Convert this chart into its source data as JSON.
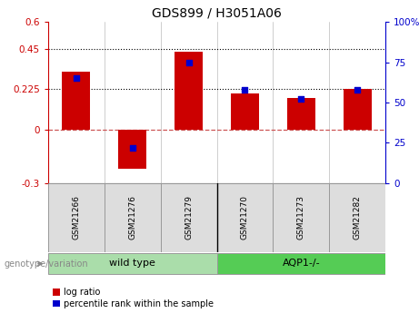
{
  "title": "GDS899 / H3051A06",
  "samples": [
    "GSM21266",
    "GSM21276",
    "GSM21279",
    "GSM21270",
    "GSM21273",
    "GSM21282"
  ],
  "log_ratio": [
    0.32,
    -0.22,
    0.435,
    0.2,
    0.175,
    0.225
  ],
  "percentile": [
    65,
    22,
    75,
    58,
    52,
    58
  ],
  "ylim_left": [
    -0.3,
    0.6
  ],
  "ylim_right": [
    0,
    100
  ],
  "yticks_left": [
    -0.3,
    0.0,
    0.225,
    0.45,
    0.6
  ],
  "yticks_right": [
    0,
    25,
    50,
    75,
    100
  ],
  "ytick_labels_left": [
    "-0.3",
    "0",
    "0.225",
    "0.45",
    "0.6"
  ],
  "ytick_labels_right": [
    "0",
    "25",
    "50",
    "75",
    "100%"
  ],
  "hlines": [
    0.225,
    0.45
  ],
  "bar_color": "#cc0000",
  "square_color": "#0000cc",
  "zero_line_color": "#cc5555",
  "hline_color": "#000000",
  "groups": [
    {
      "label": "wild type",
      "indices": [
        0,
        1,
        2
      ],
      "color": "#aaddaa"
    },
    {
      "label": "AQP1-/-",
      "indices": [
        3,
        4,
        5
      ],
      "color": "#55cc55"
    }
  ],
  "group_label": "genotype/variation",
  "legend_log_ratio": "log ratio",
  "legend_percentile": "percentile rank within the sample",
  "bar_width": 0.5,
  "title_fontsize": 10,
  "tick_fontsize": 7.5,
  "label_fontsize": 7.5
}
